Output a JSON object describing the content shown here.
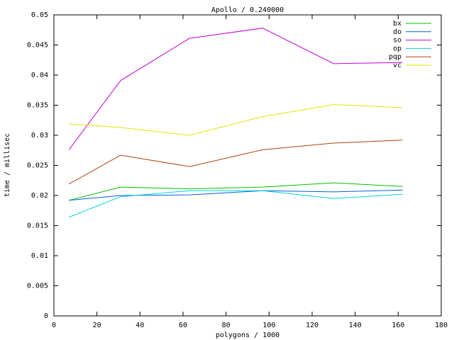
{
  "chart_data": {
    "type": "line",
    "title": "Apollo / 0.240000",
    "xlabel": "polygons / 1000",
    "ylabel": "time / millisec",
    "x": [
      7,
      31,
      63,
      97,
      130,
      162
    ],
    "xlim": [
      0,
      180
    ],
    "xticks": [
      0,
      20,
      40,
      60,
      80,
      100,
      120,
      140,
      160,
      180
    ],
    "ylim": [
      0,
      0.05
    ],
    "yticks": [
      0,
      0.005,
      0.01,
      0.015,
      0.02,
      0.025,
      0.03,
      0.035,
      0.04,
      0.045,
      0.05
    ],
    "legend": "top-right",
    "series": [
      {
        "name": "bx",
        "color": "#00c000",
        "values": [
          0.0192,
          0.0214,
          0.0211,
          0.0214,
          0.0221,
          0.0215
        ]
      },
      {
        "name": "do",
        "color": "#0060d0",
        "values": [
          0.0192,
          0.02,
          0.0201,
          0.0208,
          0.0206,
          0.0209
        ]
      },
      {
        "name": "so",
        "color": "#c000d0",
        "values": [
          0.0276,
          0.0391,
          0.0461,
          0.0478,
          0.0419,
          0.0421
        ]
      },
      {
        "name": "op",
        "color": "#00d0e0",
        "values": [
          0.0164,
          0.0198,
          0.0208,
          0.0208,
          0.0195,
          0.0202
        ]
      },
      {
        "name": "pqp",
        "color": "#b04010",
        "values": [
          0.0219,
          0.0267,
          0.0248,
          0.0276,
          0.0287,
          0.0292
        ]
      },
      {
        "name": "vc",
        "color": "#e8e000",
        "values": [
          0.0319,
          0.0313,
          0.03,
          0.0331,
          0.0351,
          0.0346
        ]
      }
    ]
  }
}
